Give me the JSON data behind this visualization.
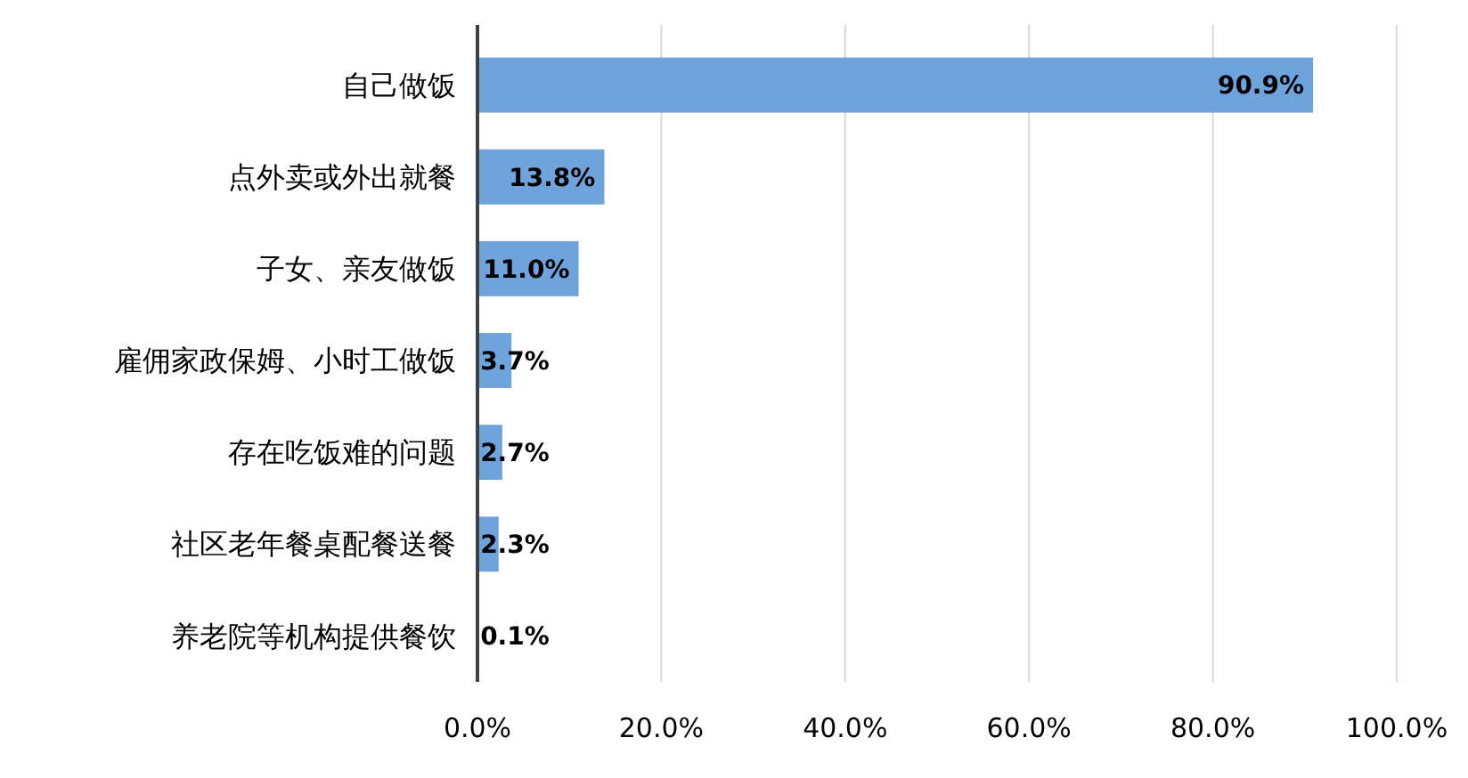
{
  "chart_data": {
    "type": "bar",
    "orientation": "horizontal",
    "categories": [
      "自己做饭",
      "点外卖或外出就餐",
      "子女、亲友做饭",
      "雇佣家政保姆、小时工做饭",
      "存在吃饭难的问题",
      "社区老年餐桌配餐送餐",
      "养老院等机构提供餐饮"
    ],
    "values": [
      90.9,
      13.8,
      11.0,
      3.7,
      2.7,
      2.3,
      0.1
    ],
    "value_labels": [
      "90.9%",
      "13.8%",
      "11.0%",
      "3.7%",
      "2.7%",
      "2.3%",
      "0.1%"
    ],
    "color": "#6fa3dc",
    "xlim": [
      0,
      100
    ],
    "xticks": [
      {
        "value": 0,
        "label": "0.0%"
      },
      {
        "value": 20,
        "label": "20.0%"
      },
      {
        "value": 40,
        "label": "40.0%"
      },
      {
        "value": 60,
        "label": "60.0%"
      },
      {
        "value": 80,
        "label": "80.0%"
      },
      {
        "value": 100,
        "label": "100.0%"
      }
    ],
    "grid": "x"
  }
}
